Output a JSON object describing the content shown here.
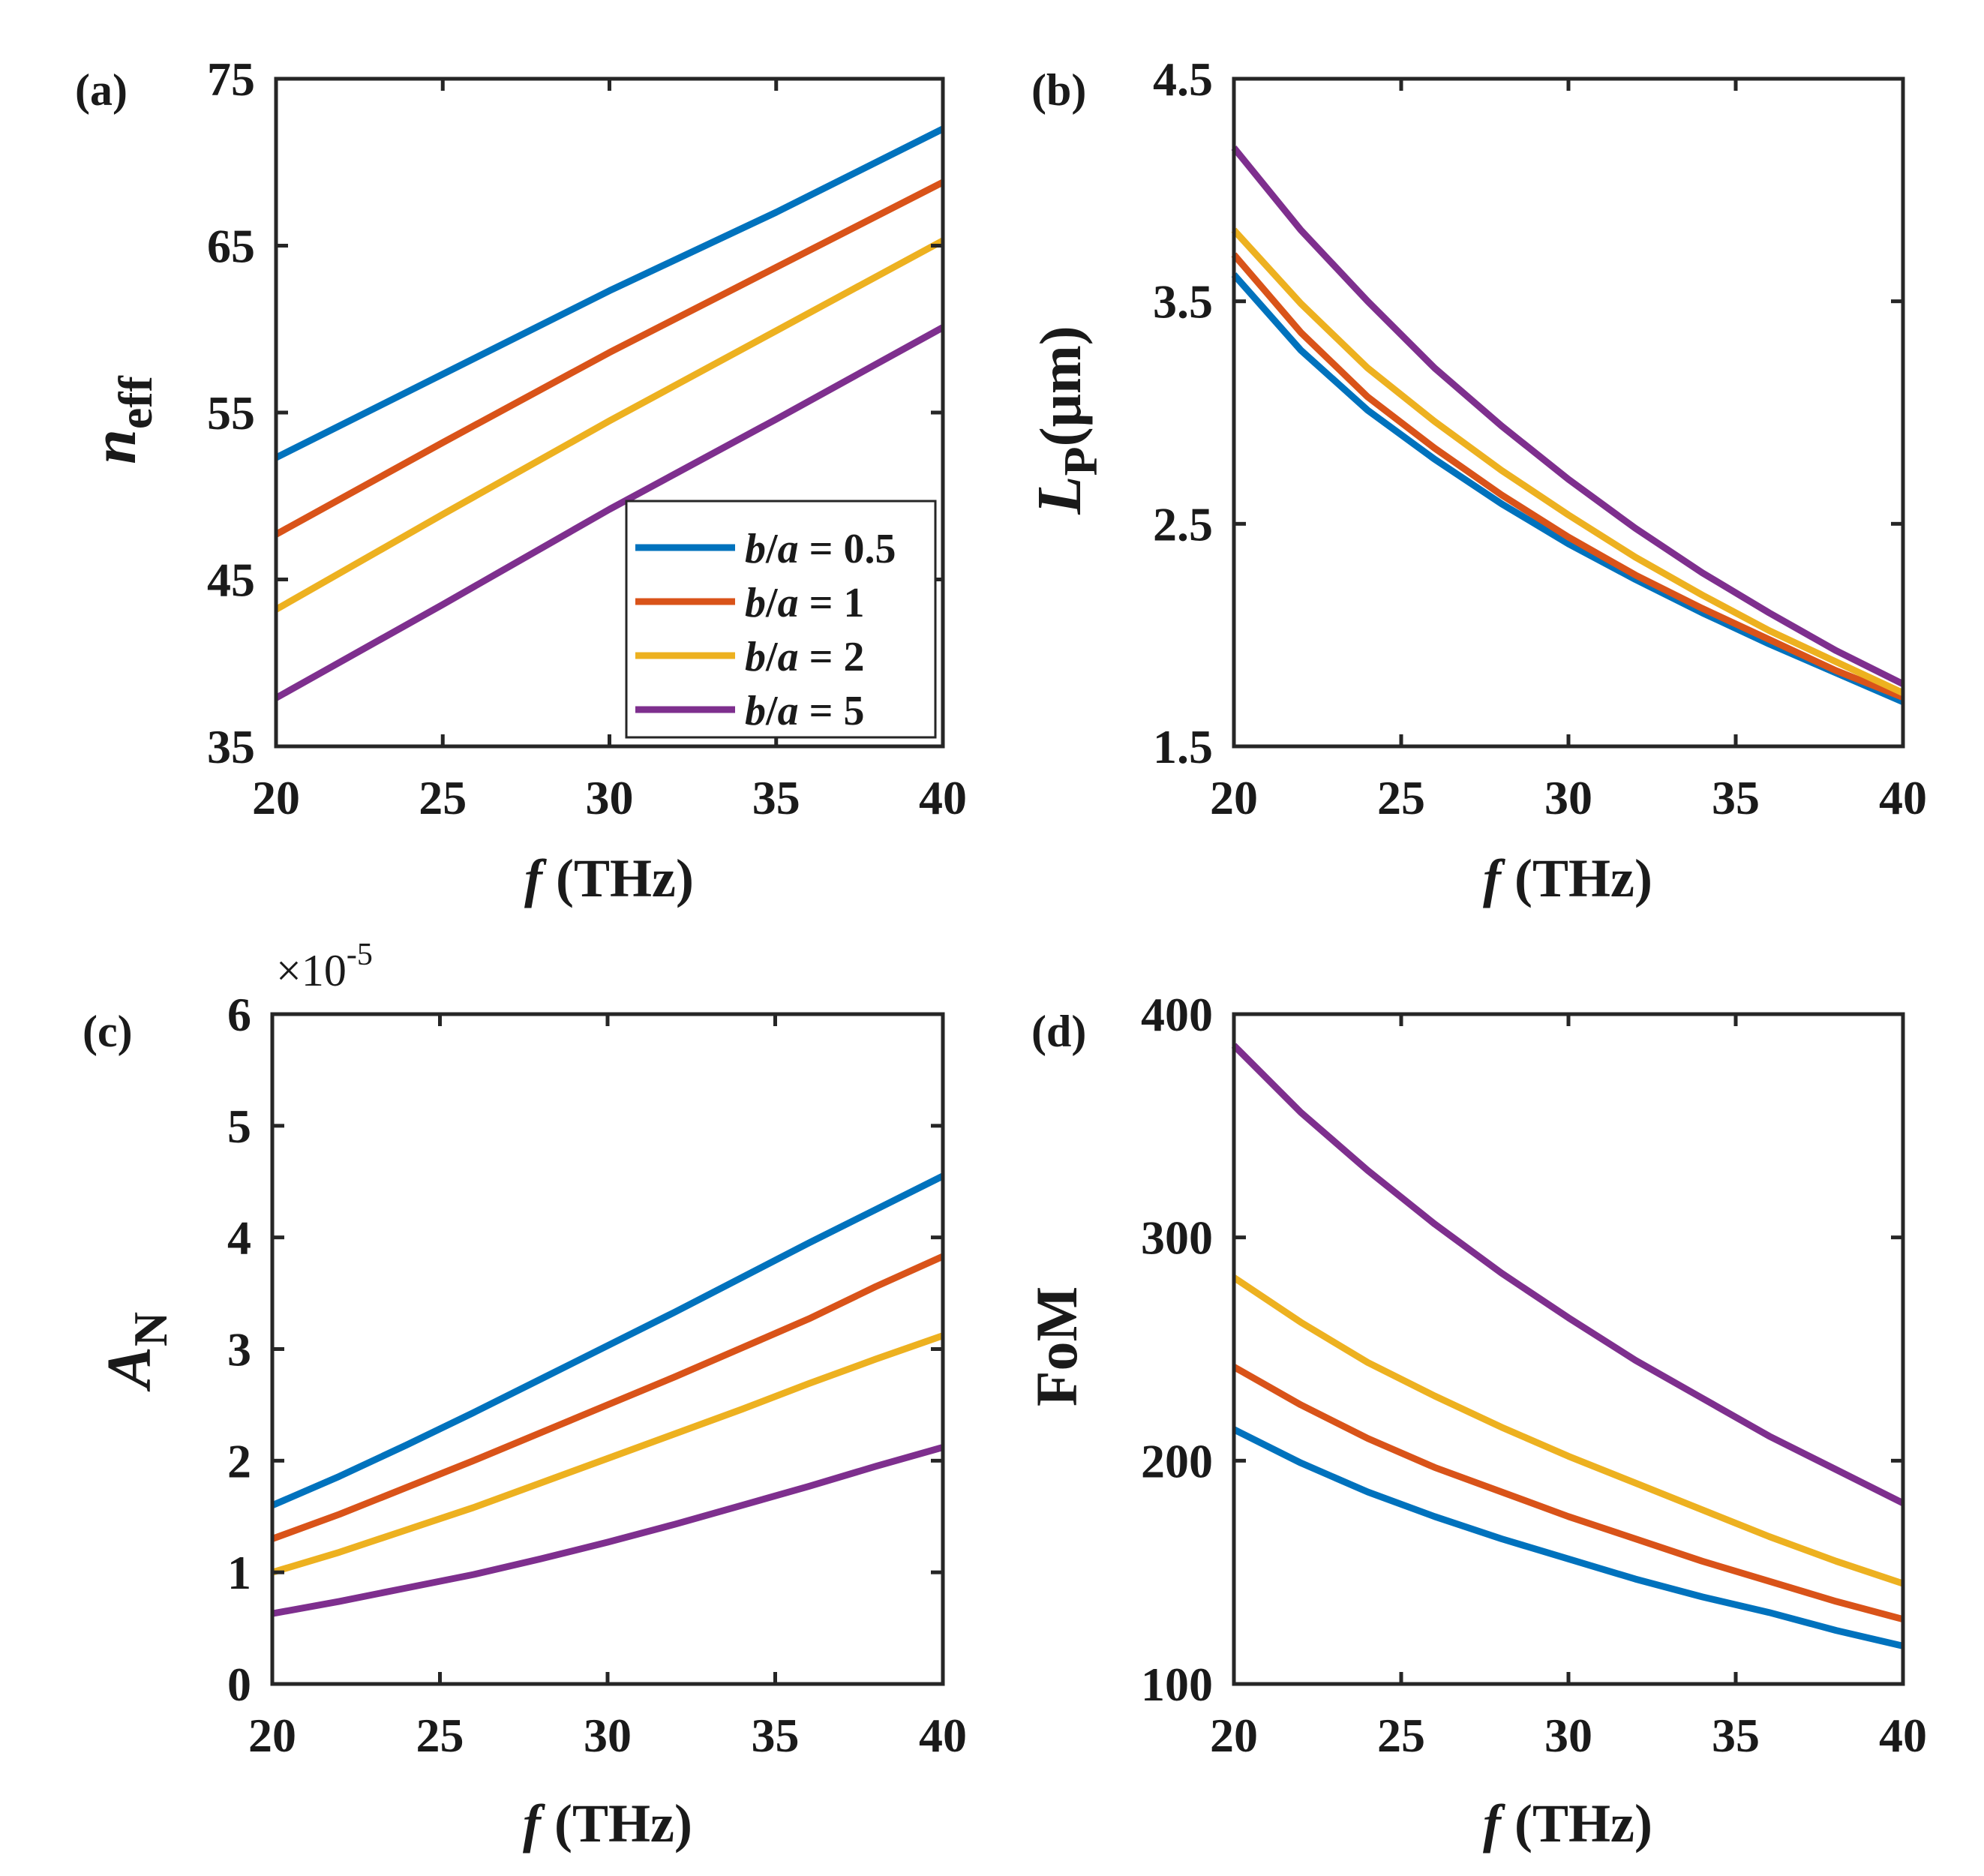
{
  "chart_data": [
    {
      "id": "a",
      "panel_label": "(a)",
      "type": "line",
      "ylabel": {
        "main": "n",
        "sub": "eff"
      },
      "xlabel": {
        "italic": "f",
        "rest": " (THz)"
      },
      "xlim": [
        20,
        40
      ],
      "ylim": [
        35,
        75
      ],
      "xticks": [
        20,
        25,
        30,
        35,
        40
      ],
      "yticks": [
        35,
        45,
        55,
        65,
        75
      ],
      "ytick_labels": [
        "35",
        "45",
        "55",
        "65",
        "75"
      ],
      "series": [
        {
          "name": "b/a = 0.5",
          "x": [
            20,
            25,
            30,
            35,
            40
          ],
          "y": [
            52.3,
            57.3,
            62.3,
            67.0,
            72.0
          ]
        },
        {
          "name": "b/a = 1",
          "x": [
            20,
            25,
            30,
            35,
            40
          ],
          "y": [
            47.7,
            53.2,
            58.6,
            63.7,
            68.8
          ]
        },
        {
          "name": "b/a = 2",
          "x": [
            20,
            25,
            30,
            35,
            40
          ],
          "y": [
            43.2,
            48.9,
            54.5,
            59.9,
            65.3
          ]
        },
        {
          "name": "b/a = 5",
          "x": [
            20,
            25,
            30,
            35,
            40
          ],
          "y": [
            37.9,
            43.5,
            49.2,
            54.6,
            60.1
          ]
        }
      ],
      "legend": {
        "placement": "bottom-right",
        "entries": [
          {
            "var1": "b",
            "var2": "a",
            "value": "0.5"
          },
          {
            "var1": "b",
            "var2": "a",
            "value": "1"
          },
          {
            "var1": "b",
            "var2": "a",
            "value": "2"
          },
          {
            "var1": "b",
            "var2": "a",
            "value": "5"
          }
        ]
      }
    },
    {
      "id": "b",
      "panel_label": "(b)",
      "type": "line",
      "ylabel": {
        "main": "L",
        "sub": "P",
        "rest": "(μm)"
      },
      "xlabel": {
        "italic": "f",
        "rest": " (THz)"
      },
      "xlim": [
        20,
        40
      ],
      "ylim": [
        1.5,
        4.5
      ],
      "xticks": [
        20,
        25,
        30,
        35,
        40
      ],
      "yticks": [
        1.5,
        2.5,
        3.5,
        4.5
      ],
      "ytick_labels": [
        "1.5",
        "2.5",
        "3.5",
        "4.5"
      ],
      "series": [
        {
          "name": "b/a = 0.5",
          "x": [
            20,
            22,
            24,
            26,
            28,
            30,
            32,
            34,
            36,
            38,
            40
          ],
          "y": [
            3.62,
            3.28,
            3.01,
            2.79,
            2.59,
            2.41,
            2.25,
            2.1,
            1.96,
            1.83,
            1.7
          ]
        },
        {
          "name": "b/a = 1",
          "x": [
            20,
            22,
            24,
            26,
            28,
            30,
            32,
            34,
            36,
            38,
            40
          ],
          "y": [
            3.71,
            3.36,
            3.07,
            2.84,
            2.63,
            2.44,
            2.27,
            2.12,
            1.98,
            1.84,
            1.72
          ]
        },
        {
          "name": "b/a = 2",
          "x": [
            20,
            22,
            24,
            26,
            28,
            30,
            32,
            34,
            36,
            38,
            40
          ],
          "y": [
            3.82,
            3.49,
            3.2,
            2.96,
            2.74,
            2.54,
            2.35,
            2.18,
            2.02,
            1.88,
            1.74
          ]
        },
        {
          "name": "b/a = 5",
          "x": [
            20,
            22,
            24,
            26,
            28,
            30,
            32,
            34,
            36,
            38,
            40
          ],
          "y": [
            4.19,
            3.82,
            3.5,
            3.2,
            2.94,
            2.7,
            2.48,
            2.28,
            2.1,
            1.93,
            1.78
          ]
        }
      ]
    },
    {
      "id": "c",
      "panel_label": "(c)",
      "type": "line",
      "ylabel": {
        "main": "A",
        "sub": "N"
      },
      "xlabel": {
        "italic": "f",
        "rest": " (THz)"
      },
      "exponent": {
        "base": "×10",
        "power": "-5"
      },
      "xlim": [
        20,
        40
      ],
      "ylim": [
        0,
        6
      ],
      "xticks": [
        20,
        25,
        30,
        35,
        40
      ],
      "yticks": [
        0,
        1,
        2,
        3,
        4,
        5,
        6
      ],
      "ytick_labels": [
        "0",
        "1",
        "2",
        "3",
        "4",
        "5",
        "6"
      ],
      "series": [
        {
          "name": "b/a = 0.5",
          "x": [
            20,
            22,
            24,
            26,
            28,
            30,
            32,
            34,
            36,
            38,
            40
          ],
          "y": [
            1.6,
            1.86,
            2.14,
            2.43,
            2.73,
            3.03,
            3.33,
            3.64,
            3.95,
            4.25,
            4.55
          ]
        },
        {
          "name": "b/a = 1",
          "x": [
            20,
            22,
            24,
            26,
            28,
            30,
            32,
            34,
            36,
            38,
            40
          ],
          "y": [
            1.3,
            1.52,
            1.76,
            2.0,
            2.25,
            2.5,
            2.75,
            3.01,
            3.27,
            3.56,
            3.83
          ]
        },
        {
          "name": "b/a = 2",
          "x": [
            20,
            22,
            24,
            26,
            28,
            30,
            32,
            34,
            36,
            38,
            40
          ],
          "y": [
            1.0,
            1.18,
            1.38,
            1.58,
            1.8,
            2.02,
            2.24,
            2.46,
            2.69,
            2.91,
            3.12
          ]
        },
        {
          "name": "b/a = 5",
          "x": [
            20,
            22,
            24,
            26,
            28,
            30,
            32,
            34,
            36,
            38,
            40
          ],
          "y": [
            0.63,
            0.74,
            0.86,
            0.98,
            1.12,
            1.27,
            1.43,
            1.6,
            1.77,
            1.95,
            2.12
          ]
        }
      ]
    },
    {
      "id": "d",
      "panel_label": "(d)",
      "type": "line",
      "ylabel": {
        "text": "FoM"
      },
      "xlabel": {
        "italic": "f",
        "rest": " (THz)"
      },
      "xlim": [
        20,
        40
      ],
      "ylim": [
        100,
        400
      ],
      "xticks": [
        20,
        25,
        30,
        35,
        40
      ],
      "yticks": [
        100,
        200,
        300,
        400
      ],
      "ytick_labels": [
        "100",
        "200",
        "300",
        "400"
      ],
      "series": [
        {
          "name": "b/a = 0.5",
          "x": [
            20,
            22,
            24,
            26,
            28,
            30,
            32,
            34,
            36,
            38,
            40
          ],
          "y": [
            214,
            199,
            186,
            175,
            165,
            156,
            147,
            139,
            132,
            124,
            117
          ]
        },
        {
          "name": "b/a = 1",
          "x": [
            20,
            22,
            24,
            26,
            28,
            30,
            32,
            34,
            36,
            38,
            40
          ],
          "y": [
            242,
            225,
            210,
            197,
            186,
            175,
            165,
            155,
            146,
            137,
            129
          ]
        },
        {
          "name": "b/a = 2",
          "x": [
            20,
            22,
            24,
            26,
            28,
            30,
            32,
            34,
            36,
            38,
            40
          ],
          "y": [
            282,
            262,
            244,
            229,
            215,
            202,
            190,
            178,
            166,
            155,
            145
          ]
        },
        {
          "name": "b/a = 5",
          "x": [
            20,
            22,
            24,
            26,
            28,
            30,
            32,
            34,
            36,
            38,
            40
          ],
          "y": [
            386,
            356,
            330,
            306,
            284,
            264,
            245,
            228,
            211,
            196,
            181
          ]
        }
      ]
    }
  ],
  "series_colors": [
    "#0072BD",
    "#D95319",
    "#EDB120",
    "#7E2F8E"
  ]
}
